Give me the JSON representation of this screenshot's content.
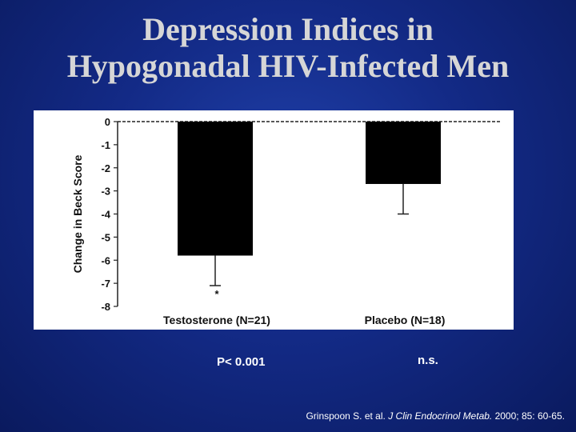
{
  "slide": {
    "title_line1": "Depression Indices in",
    "title_line2": "Hypogonadal HIV-Infected Men",
    "pvalue_testosterone": "P< 0.001",
    "pvalue_placebo": "n.s.",
    "citation_authors": "Grinspoon S. et al. ",
    "citation_journal": "J Clin Endocrinol Metab.",
    "citation_details": " 2000; 85: 60-65."
  },
  "colors": {
    "background": "#132a86",
    "title": "#d6d6d6",
    "panel": "#ffffff",
    "bar": "#000000"
  },
  "chart_data": {
    "type": "bar",
    "title": "",
    "xlabel": "",
    "ylabel": "Change in Beck Score",
    "categories": [
      "Testosterone (N=21)",
      "Placebo (N=18)"
    ],
    "values": [
      -5.8,
      -2.7
    ],
    "error": [
      1.3,
      1.3
    ],
    "annotations": [
      "*",
      ""
    ],
    "yticks": [
      0,
      -1,
      -2,
      -3,
      -4,
      -5,
      -6,
      -7,
      -8
    ],
    "ylim": [
      -8,
      0
    ],
    "grid": false
  }
}
